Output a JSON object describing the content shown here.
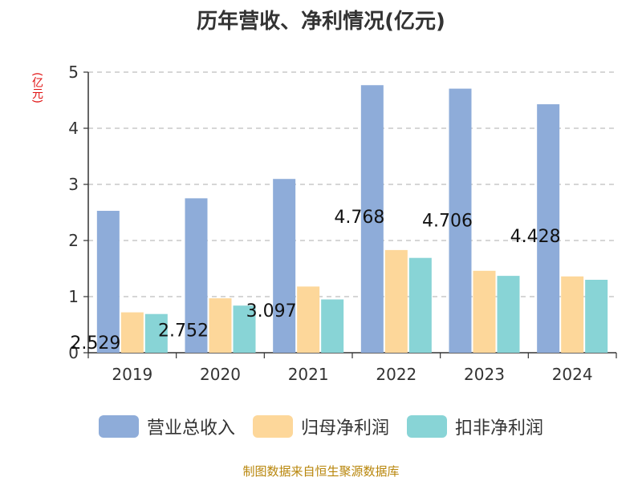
{
  "chart_data": {
    "type": "bar",
    "title": "历年营收、净利情况(亿元)",
    "unit": "(亿元)",
    "categories": [
      "2019",
      "2020",
      "2021",
      "2022",
      "2023",
      "2024"
    ],
    "ylim": [
      0,
      5
    ],
    "yticks": [
      "0",
      "1",
      "2",
      "3",
      "4",
      "5"
    ],
    "grid": true,
    "legend_position": "bottom",
    "series": [
      {
        "name": "营业总收入",
        "color": "#8eacd9",
        "values": [
          2.529,
          2.752,
          3.097,
          4.768,
          4.706,
          4.428
        ]
      },
      {
        "name": "归母净利润",
        "color": "#fdd79a",
        "values": [
          0.72,
          0.97,
          1.18,
          1.83,
          1.46,
          1.36
        ]
      },
      {
        "name": "扣非净利润",
        "color": "#88d4d6",
        "values": [
          0.69,
          0.84,
          0.95,
          1.69,
          1.37,
          1.3
        ]
      }
    ],
    "data_labels": [
      "2.529",
      "2.752",
      "3.097",
      "4.768",
      "4.706",
      "4.428"
    ]
  },
  "footer": {
    "source": "制图数据来自恒生聚源数据库"
  }
}
